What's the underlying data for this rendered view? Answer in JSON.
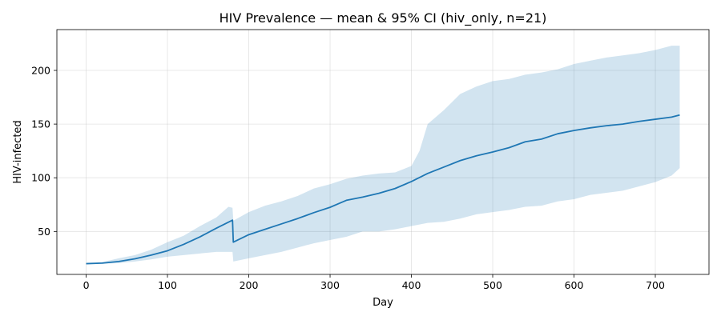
{
  "chart_data": {
    "type": "area",
    "title": "HIV Prevalence — mean & 95% CI (hiv_only, n=21)",
    "xlabel": "Day",
    "ylabel": "HIV-infected",
    "xlim": [
      -36,
      766
    ],
    "ylim": [
      10,
      238
    ],
    "xticks": [
      0,
      100,
      200,
      300,
      400,
      500,
      600,
      700
    ],
    "yticks": [
      50,
      100,
      150,
      200
    ],
    "grid": true,
    "colors": {
      "line": "#1f77b4",
      "band": "#1f77b4"
    },
    "series": [
      {
        "kind": "mean",
        "x": [
          0,
          20,
          40,
          60,
          80,
          100,
          120,
          140,
          160,
          180,
          181,
          200,
          220,
          240,
          260,
          280,
          300,
          320,
          340,
          360,
          380,
          400,
          420,
          440,
          460,
          480,
          500,
          520,
          540,
          560,
          580,
          600,
          620,
          640,
          660,
          680,
          700,
          720,
          730
        ],
        "y": [
          20,
          20.5,
          22,
          24.5,
          28,
          32,
          38,
          45,
          53,
          60.5,
          40,
          47,
          52,
          57,
          62,
          67.5,
          72.5,
          79,
          82,
          85.5,
          90,
          96.5,
          104,
          110,
          116,
          120.5,
          124,
          128,
          133.5,
          136,
          141,
          144,
          146.5,
          148.5,
          150,
          152.5,
          154.5,
          156.5,
          158.5
        ]
      },
      {
        "kind": "ci-upper",
        "x": [
          0,
          20,
          40,
          60,
          80,
          100,
          120,
          140,
          160,
          175,
          180,
          181,
          200,
          220,
          240,
          260,
          280,
          300,
          320,
          340,
          360,
          380,
          400,
          410,
          420,
          440,
          460,
          480,
          500,
          520,
          540,
          560,
          580,
          600,
          620,
          640,
          660,
          680,
          700,
          720,
          730
        ],
        "y": [
          20,
          21.5,
          25,
          28,
          33,
          40,
          46,
          55,
          63,
          73,
          72,
          60,
          68,
          74,
          78,
          83,
          90,
          94,
          99,
          102,
          104,
          105,
          111,
          125,
          150,
          163,
          178,
          185,
          190,
          192,
          196,
          198,
          201,
          206,
          209,
          212,
          214,
          216,
          219,
          223,
          223
        ]
      },
      {
        "kind": "ci-lower",
        "x": [
          0,
          20,
          40,
          60,
          80,
          100,
          120,
          140,
          160,
          180,
          181,
          200,
          220,
          240,
          260,
          280,
          300,
          320,
          340,
          360,
          380,
          400,
          420,
          440,
          460,
          480,
          500,
          520,
          540,
          560,
          580,
          600,
          620,
          640,
          660,
          680,
          700,
          720,
          730
        ],
        "y": [
          20,
          20,
          20.5,
          22,
          24,
          26.5,
          28,
          29.5,
          31,
          31,
          22,
          25,
          28,
          31,
          35,
          39,
          42,
          45,
          50,
          50,
          52,
          55,
          58,
          59,
          62,
          66,
          68,
          70,
          73,
          74,
          78,
          80,
          84,
          86,
          88,
          92,
          96,
          102,
          109
        ]
      }
    ]
  }
}
